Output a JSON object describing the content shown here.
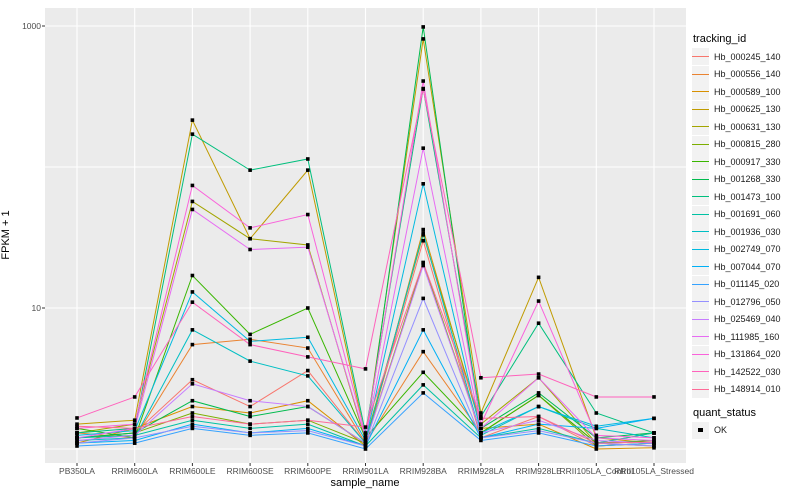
{
  "figure": {
    "background": "#FFFFFF",
    "panel_background": "#EBEBEB",
    "grid_color": "#FFFFFF",
    "tick_color": "#333333",
    "axis_text_color": "#4d4d4d"
  },
  "legend": {
    "tracking_title": "tracking_id",
    "quant_title": "quant_status",
    "quant_items": [
      {
        "label": "OK",
        "marker": "black-square"
      }
    ],
    "key_background": "#F2F2F2"
  },
  "chart_data": {
    "type": "line",
    "title": "",
    "xlabel": "sample_name",
    "ylabel": "FPKM + 1",
    "x_type": "categorical",
    "y_scale": "log10",
    "ylim": [
      0.95,
      1100
    ],
    "y_tick_values": [
      1000,
      10
    ],
    "y_gridline_values": [
      1000,
      100,
      10,
      1
    ],
    "grid": "major-white-on-gray",
    "legend_position": "right",
    "point_marker": "black-square",
    "categories": [
      "PB350LA",
      "RRIM600LA",
      "RRIM600LE",
      "RRIM600SE",
      "RRIM600PE",
      "RRIM901LA",
      "RRIM928BA",
      "RRIM928LA",
      "RRIM928LE",
      "RRII105LA_Control",
      "RRII105LA_Stressed"
    ],
    "series": [
      {
        "name": "Hb_000245_140",
        "color": "#F8766D",
        "values": [
          1.2,
          1.3,
          3.1,
          2.0,
          3.6,
          1.1,
          30,
          1.2,
          1.7,
          1.05,
          1.1
        ]
      },
      {
        "name": "Hb_000556_140",
        "color": "#EA8331",
        "values": [
          1.3,
          1.2,
          5.5,
          6.0,
          5.2,
          1.1,
          4.9,
          1.3,
          2.4,
          1.1,
          1.05
        ]
      },
      {
        "name": "Hb_000589_100",
        "color": "#D89000",
        "values": [
          1.1,
          1.4,
          2.0,
          1.8,
          2.2,
          1.05,
          36,
          1.4,
          1.5,
          1.0,
          1.02
        ]
      },
      {
        "name": "Hb_000625_130",
        "color": "#C09B00",
        "values": [
          1.5,
          1.6,
          215,
          31,
          95,
          1.2,
          810,
          1.8,
          16.5,
          1.2,
          1.1
        ]
      },
      {
        "name": "Hb_000631_130",
        "color": "#A3A500",
        "values": [
          1.3,
          1.5,
          57,
          31,
          28,
          1.15,
          33,
          1.5,
          3.2,
          1.1,
          1.3
        ]
      },
      {
        "name": "Hb_000815_280",
        "color": "#7CAE00",
        "values": [
          1.2,
          1.3,
          1.8,
          1.5,
          1.6,
          1.1,
          21,
          1.3,
          2.4,
          1.05,
          1.1
        ]
      },
      {
        "name": "Hb_000917_330",
        "color": "#39B600",
        "values": [
          1.4,
          1.2,
          17,
          6.5,
          10,
          1.2,
          3.5,
          1.3,
          2.4,
          1.1,
          1.15
        ]
      },
      {
        "name": "Hb_001268_330",
        "color": "#00BB4E",
        "values": [
          1.2,
          1.3,
          2.2,
          1.7,
          2.0,
          1.1,
          985,
          1.4,
          2.5,
          1.2,
          1.3
        ]
      },
      {
        "name": "Hb_001473_100",
        "color": "#00BF7D",
        "values": [
          1.3,
          1.4,
          171,
          95,
          114,
          1.3,
          360,
          1.7,
          7.8,
          1.8,
          1.3
        ]
      },
      {
        "name": "Hb_001691_060",
        "color": "#00C1A3",
        "values": [
          1.2,
          1.25,
          1.6,
          1.4,
          1.5,
          1.05,
          2.85,
          1.2,
          1.4,
          1.1,
          1.3
        ]
      },
      {
        "name": "Hb_001936_030",
        "color": "#00BFC4",
        "values": [
          1.15,
          1.2,
          7.0,
          4.2,
          3.3,
          1.1,
          34,
          1.25,
          2.0,
          1.4,
          1.2
        ]
      },
      {
        "name": "Hb_002749_070",
        "color": "#00BAE0",
        "values": [
          1.25,
          1.35,
          13,
          5.8,
          6.2,
          1.15,
          76,
          1.3,
          2.0,
          1.45,
          1.65
        ]
      },
      {
        "name": "Hb_007044_070",
        "color": "#00B0F6",
        "values": [
          1.1,
          1.15,
          1.5,
          1.3,
          1.4,
          1.05,
          7.0,
          1.2,
          1.5,
          1.4,
          1.65
        ]
      },
      {
        "name": "Hb_011145_020",
        "color": "#35A2FF",
        "values": [
          1.05,
          1.1,
          1.4,
          1.25,
          1.3,
          1.0,
          2.5,
          1.15,
          1.3,
          1.05,
          1.1
        ]
      },
      {
        "name": "Hb_012796_050",
        "color": "#9590FF",
        "values": [
          1.1,
          1.2,
          1.45,
          1.3,
          1.35,
          1.05,
          11.7,
          1.2,
          1.35,
          1.1,
          1.05
        ]
      },
      {
        "name": "Hb_025469_040",
        "color": "#C77CFF",
        "values": [
          1.15,
          1.25,
          2.9,
          2.2,
          2.0,
          1.1,
          20,
          1.3,
          1.6,
          1.15,
          1.1
        ]
      },
      {
        "name": "Hb_111985_160",
        "color": "#E76BF3",
        "values": [
          1.2,
          1.4,
          50,
          26,
          27,
          1.2,
          136,
          1.4,
          3.2,
          1.2,
          1.15
        ]
      },
      {
        "name": "Hb_131864_020",
        "color": "#FA62DB",
        "values": [
          1.4,
          1.5,
          74,
          37,
          46,
          1.25,
          407,
          1.5,
          11.2,
          1.25,
          1.2
        ]
      },
      {
        "name": "Hb_142522_030",
        "color": "#FF62BC",
        "values": [
          1.66,
          2.34,
          11,
          5.5,
          4.5,
          3.7,
          357,
          3.2,
          3.4,
          2.34,
          2.34
        ]
      },
      {
        "name": "Hb_148914_010",
        "color": "#FF6A98",
        "values": [
          1.45,
          1.4,
          1.7,
          1.5,
          1.6,
          1.43,
          21,
          1.65,
          1.7,
          1.1,
          1.12
        ]
      }
    ]
  }
}
